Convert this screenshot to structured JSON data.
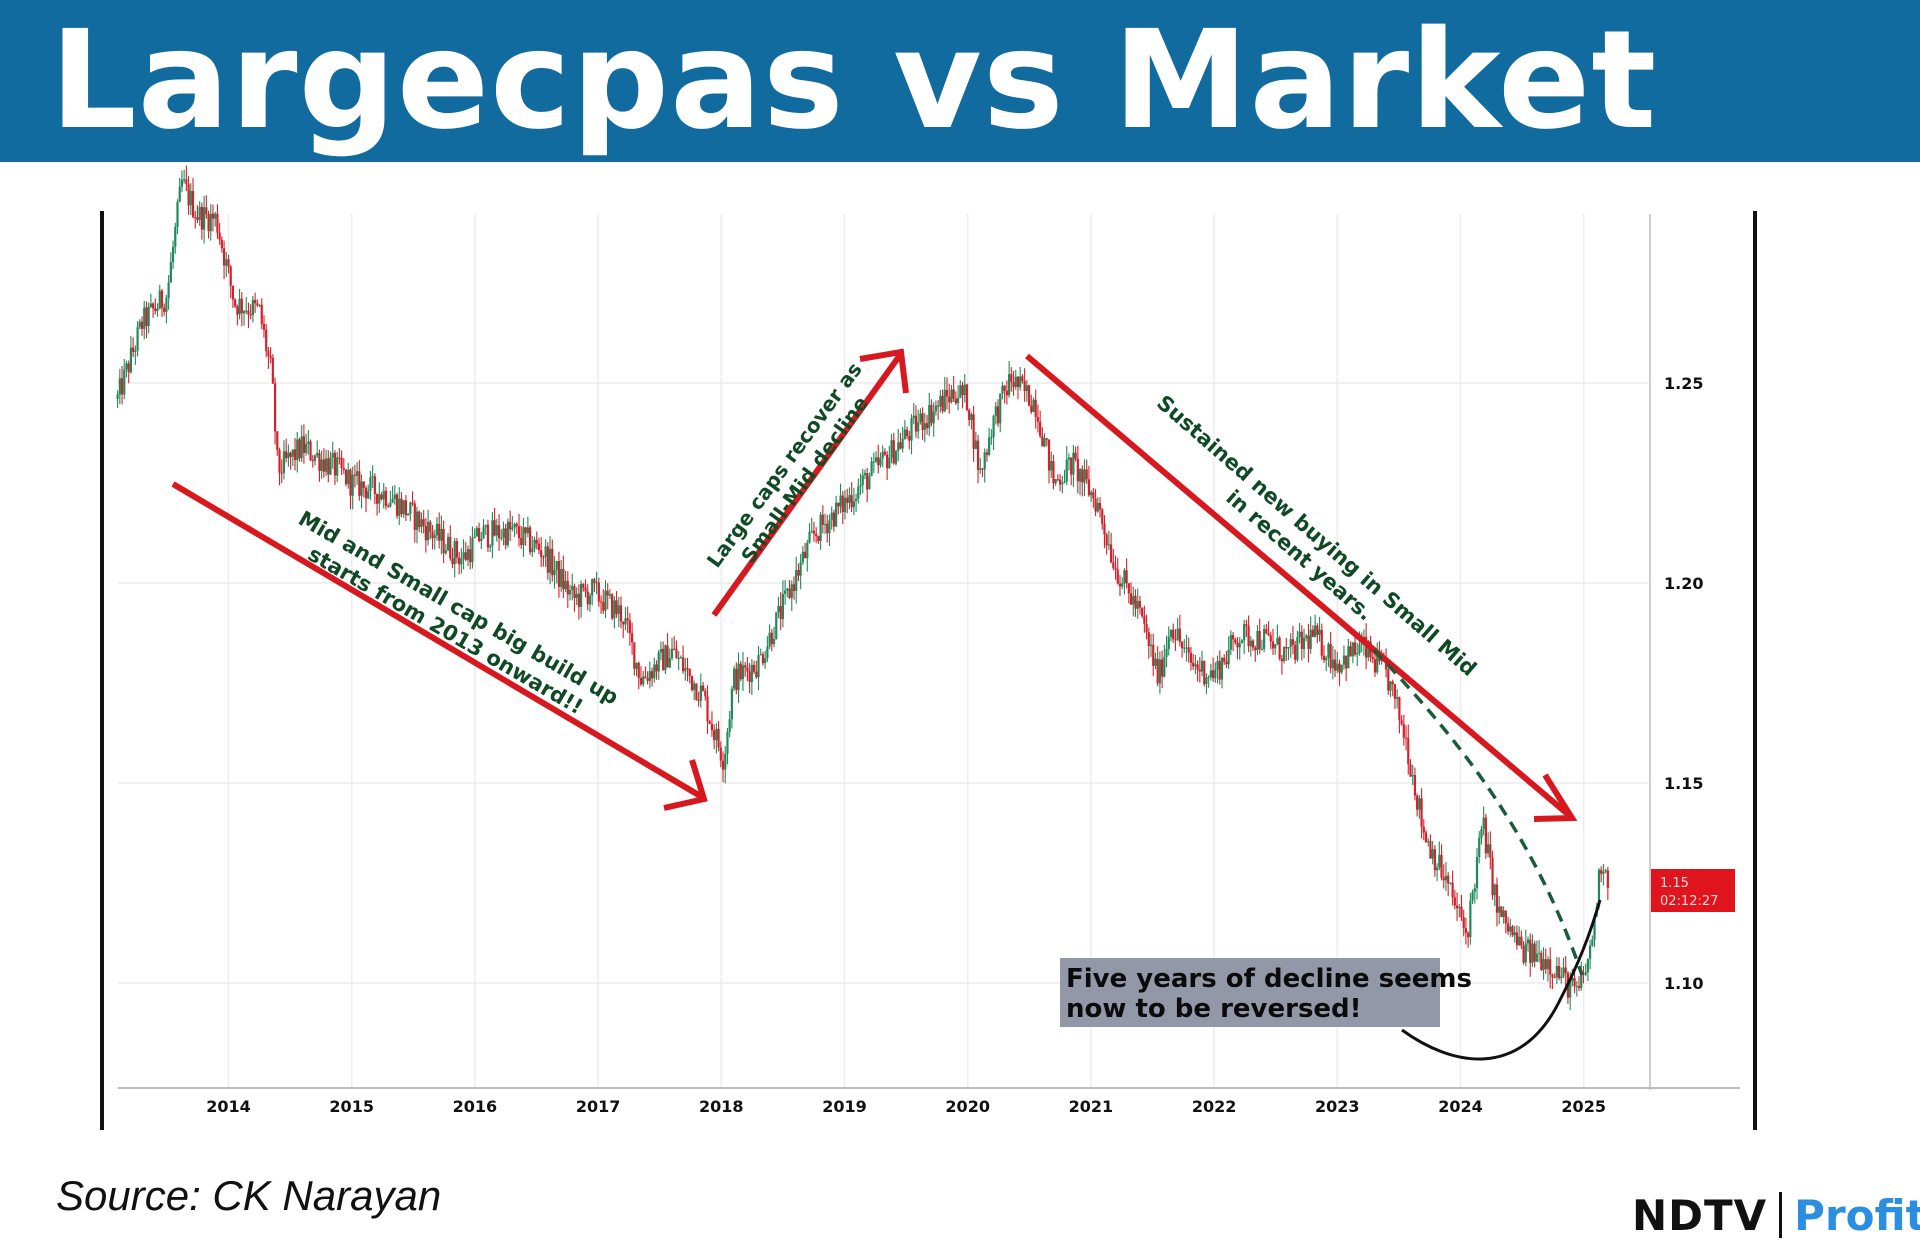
{
  "header": {
    "title": "Largecpas vs Market",
    "background": "#126b9f"
  },
  "source": "Source: CK Narayan",
  "brand": {
    "left": "NDTV",
    "right": "Profit"
  },
  "chart_data": {
    "type": "candlestick",
    "x_ticks": [
      "2014",
      "2015",
      "2016",
      "2017",
      "2018",
      "2019",
      "2020",
      "2021",
      "2022",
      "2023",
      "2024",
      "2025"
    ],
    "y_ticks": [
      "1.25",
      "1.20",
      "1.15",
      "1.10"
    ],
    "ylim": [
      1.074,
      1.31
    ],
    "xlim": [
      2013.07,
      2026.27
    ],
    "grid": true,
    "colors": {
      "up": "#1f8a5a",
      "down": "#d4202a",
      "arrow": "#d7191f",
      "annotation": "#0f4a24"
    },
    "series_points": [
      [
        2013.1,
        1.246
      ],
      [
        2013.3,
        1.265
      ],
      [
        2013.5,
        1.272
      ],
      [
        2013.62,
        1.3
      ],
      [
        2013.75,
        1.292
      ],
      [
        2013.9,
        1.291
      ],
      [
        2014.05,
        1.27
      ],
      [
        2014.25,
        1.268
      ],
      [
        2014.35,
        1.252
      ],
      [
        2014.4,
        1.228
      ],
      [
        2014.6,
        1.234
      ],
      [
        2014.9,
        1.228
      ],
      [
        2015.0,
        1.225
      ],
      [
        2015.3,
        1.222
      ],
      [
        2015.6,
        1.214
      ],
      [
        2015.9,
        1.206
      ],
      [
        2016.05,
        1.212
      ],
      [
        2016.3,
        1.213
      ],
      [
        2016.55,
        1.208
      ],
      [
        2016.8,
        1.196
      ],
      [
        2016.95,
        1.198
      ],
      [
        2017.2,
        1.192
      ],
      [
        2017.35,
        1.176
      ],
      [
        2017.6,
        1.183
      ],
      [
        2017.85,
        1.172
      ],
      [
        2017.95,
        1.162
      ],
      [
        2018.02,
        1.156
      ],
      [
        2018.1,
        1.176
      ],
      [
        2018.3,
        1.18
      ],
      [
        2018.5,
        1.194
      ],
      [
        2018.75,
        1.212
      ],
      [
        2019.0,
        1.22
      ],
      [
        2019.3,
        1.23
      ],
      [
        2019.6,
        1.24
      ],
      [
        2019.9,
        1.248
      ],
      [
        2020.0,
        1.246
      ],
      [
        2020.1,
        1.227
      ],
      [
        2020.2,
        1.24
      ],
      [
        2020.35,
        1.251
      ],
      [
        2020.55,
        1.245
      ],
      [
        2020.7,
        1.225
      ],
      [
        2020.85,
        1.23
      ],
      [
        2021.05,
        1.22
      ],
      [
        2021.2,
        1.204
      ],
      [
        2021.4,
        1.192
      ],
      [
        2021.55,
        1.176
      ],
      [
        2021.65,
        1.19
      ],
      [
        2021.8,
        1.18
      ],
      [
        2022.0,
        1.177
      ],
      [
        2022.2,
        1.187
      ],
      [
        2022.4,
        1.186
      ],
      [
        2022.6,
        1.182
      ],
      [
        2022.8,
        1.187
      ],
      [
        2023.0,
        1.18
      ],
      [
        2023.2,
        1.184
      ],
      [
        2023.4,
        1.177
      ],
      [
        2023.55,
        1.162
      ],
      [
        2023.7,
        1.138
      ],
      [
        2023.9,
        1.124
      ],
      [
        2024.05,
        1.112
      ],
      [
        2024.18,
        1.14
      ],
      [
        2024.3,
        1.118
      ],
      [
        2024.5,
        1.108
      ],
      [
        2024.7,
        1.106
      ],
      [
        2024.95,
        1.097
      ],
      [
        2025.05,
        1.107
      ],
      [
        2025.15,
        1.132
      ],
      [
        2025.2,
        1.125
      ]
    ],
    "price_label": {
      "value": "1.15",
      "time": "02:12:27"
    },
    "annotations": [
      "Mid and Small cap big build up",
      "starts from 2013 onward!!",
      "Large caps recover as",
      "Small-Mid decline",
      "Sustained new buying in Small Mid",
      "in recent years.",
      "Five years of decline seems",
      "now to be reversed!"
    ]
  }
}
